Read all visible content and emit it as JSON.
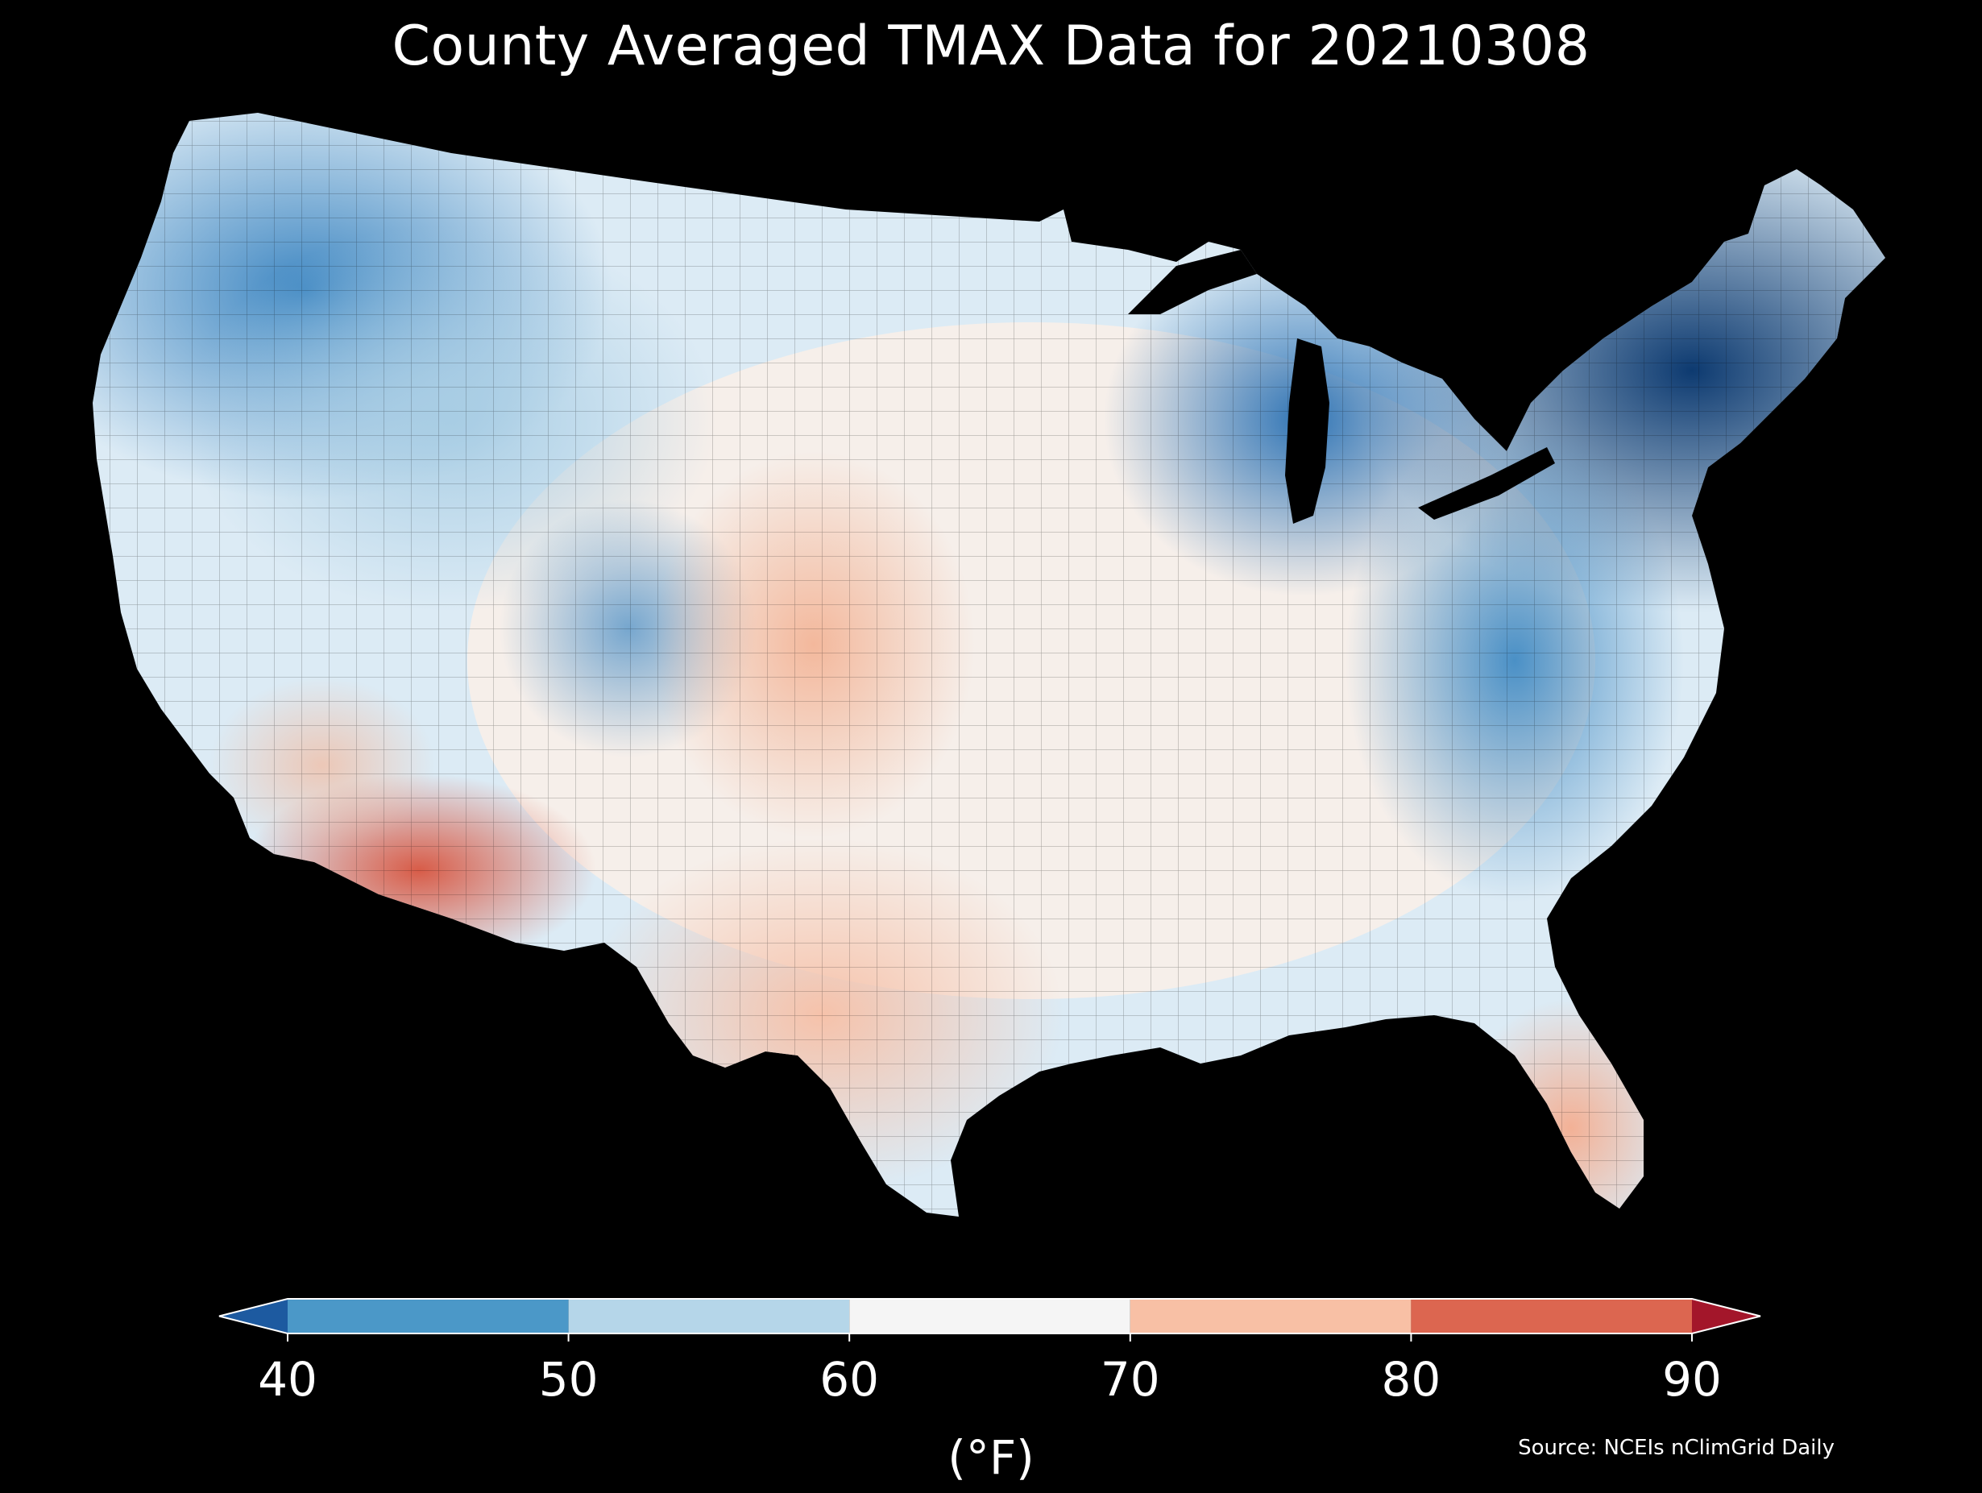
{
  "title": "County Averaged TMAX Data for 20210308",
  "source": "Source: NCEIs nClimGrid Daily",
  "colorbar": {
    "units": "(°F)",
    "ticks": [
      "40",
      "50",
      "60",
      "70",
      "80",
      "90"
    ],
    "bins": [
      {
        "range": [
          40,
          50
        ],
        "color": "#4b98c8"
      },
      {
        "range": [
          50,
          60
        ],
        "color": "#b5d6e9"
      },
      {
        "range": [
          60,
          70
        ],
        "color": "#f5f5f5"
      },
      {
        "range": [
          70,
          80
        ],
        "color": "#f8c0a5"
      },
      {
        "range": [
          80,
          90
        ],
        "color": "#dc6650"
      }
    ],
    "under_color": "#1d5aa0",
    "over_color": "#a3162a"
  },
  "map": {
    "region": "Contiguous United States",
    "variable": "TMAX",
    "background": "#000000"
  }
}
